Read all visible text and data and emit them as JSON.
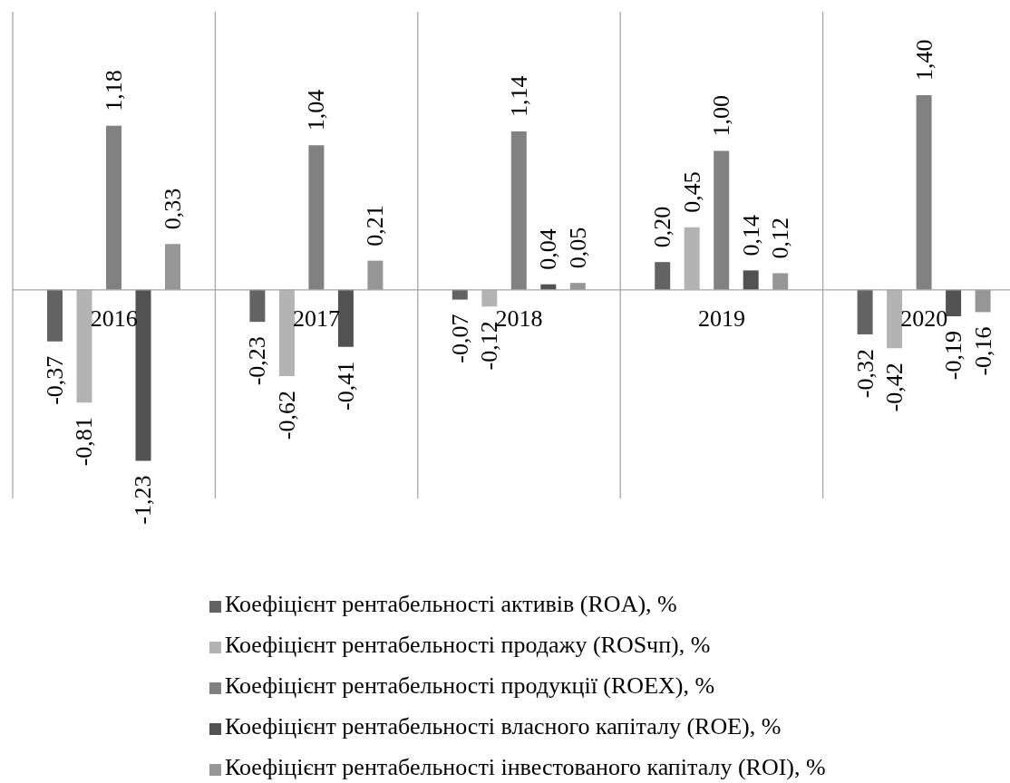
{
  "chart_data": {
    "type": "bar",
    "categories": [
      "2016",
      "2017",
      "2018",
      "2019",
      "2020"
    ],
    "series": [
      {
        "name": "Коефіцієнт рентабельності активів (ROA), %",
        "color": "#636363",
        "values": [
          -0.37,
          -0.23,
          -0.07,
          0.2,
          -0.32
        ],
        "value_labels": [
          "-0,37",
          "-0,23",
          "-0,07",
          "0,20",
          "-0,32"
        ]
      },
      {
        "name": "Коефіцієнт рентабельності продажу (ROSчп), %",
        "color": "#b3b3b3",
        "values": [
          -0.81,
          -0.62,
          -0.12,
          0.45,
          -0.42
        ],
        "value_labels": [
          "-0,81",
          "-0,62",
          "-0,12",
          "0,45",
          "-0,42"
        ]
      },
      {
        "name": "Коефіцієнт рентабельності продукції (ROEX), %",
        "color": "#818181",
        "values": [
          1.18,
          1.04,
          1.14,
          1.0,
          1.4
        ],
        "value_labels": [
          "1,18",
          "1,04",
          "1,14",
          "1,00",
          "1,40"
        ]
      },
      {
        "name": "Коефіцієнт рентабельності власного капіталу (ROE), %",
        "color": "#525252",
        "values": [
          -1.23,
          -0.41,
          0.04,
          0.14,
          -0.19
        ],
        "value_labels": [
          "-1,23",
          "-0,41",
          "0,04",
          "0,14",
          "-0,19"
        ]
      },
      {
        "name": "Коефіцієнт рентабельності інвестованого капіталу (ROI), %",
        "color": "#969696",
        "values": [
          0.33,
          0.21,
          0.05,
          0.12,
          -0.16
        ],
        "value_labels": [
          "0,33",
          "0,21",
          "0,05",
          "0,12",
          "-0,16"
        ]
      }
    ],
    "grid": "x",
    "legend": "bottom",
    "tick_labels": "x"
  }
}
